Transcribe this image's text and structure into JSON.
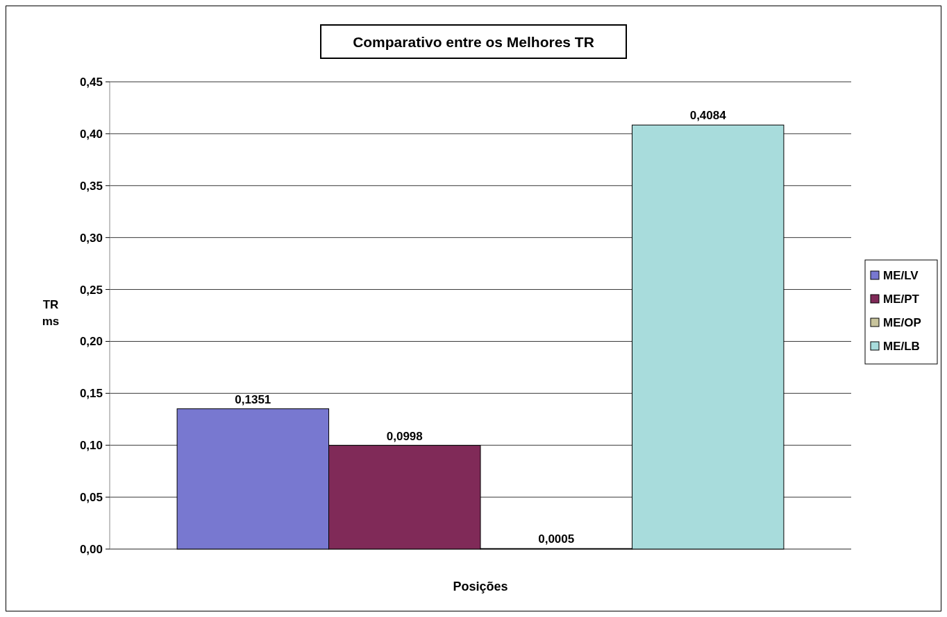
{
  "chart_data": {
    "type": "bar",
    "title": "Comparativo entre os Melhores TR",
    "xlabel": "Posições",
    "ylabel": "TR\nms",
    "categories": [
      null
    ],
    "series": [
      {
        "name": "ME/LV",
        "color": "#7878d0",
        "values": [
          0.1351
        ],
        "value_labels": [
          "0,1351"
        ]
      },
      {
        "name": "ME/PT",
        "color": "#802a58",
        "values": [
          0.0998
        ],
        "value_labels": [
          "0,0998"
        ]
      },
      {
        "name": "ME/OP",
        "color": "#c8c49c",
        "values": [
          0.0005
        ],
        "value_labels": [
          "0,0005"
        ]
      },
      {
        "name": "ME/LB",
        "color": "#a8dcdc",
        "values": [
          0.4084
        ],
        "value_labels": [
          "0,4084"
        ]
      }
    ],
    "ylim": [
      0,
      0.45
    ],
    "yticks": [
      {
        "value": 0,
        "label": "0,00"
      },
      {
        "value": 0.05,
        "label": "0,05"
      },
      {
        "value": 0.1,
        "label": "0,10"
      },
      {
        "value": 0.15,
        "label": "0,15"
      },
      {
        "value": 0.2,
        "label": "0,20"
      },
      {
        "value": 0.25,
        "label": "0,25"
      },
      {
        "value": 0.3,
        "label": "0,30"
      },
      {
        "value": 0.35,
        "label": "0,35"
      },
      {
        "value": 0.4,
        "label": "0,40"
      },
      {
        "value": 0.45,
        "label": "0,45"
      }
    ],
    "grid": "y",
    "legend": "right"
  }
}
